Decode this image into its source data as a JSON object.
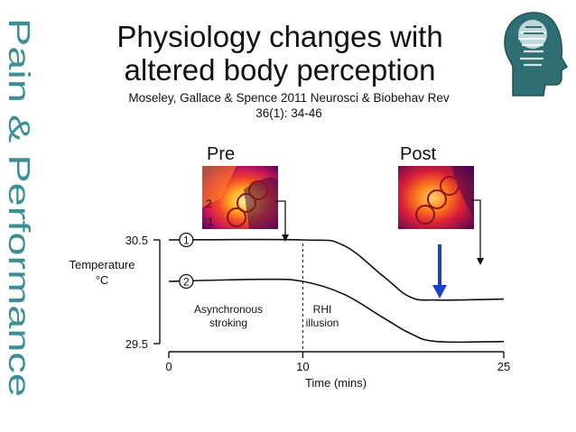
{
  "slide": {
    "side_text": "Pain & Performance",
    "title_line1": "Physiology changes with",
    "title_line2": "altered body perception",
    "citation_line1": "Moseley, Gallace & Spence 2011 Neurosci & Biobehav Rev",
    "citation_line2": "36(1): 34-46"
  },
  "logo": {
    "icon": "head-word-cloud-icon"
  },
  "colors": {
    "side_text": "#3b8f95",
    "logo": "#2f6f74",
    "arrow": "#1e3fc8",
    "curve": "#111111"
  },
  "chart_data": {
    "type": "line",
    "xlabel": "Time (mins)",
    "ylabel_line1": "Temperature",
    "ylabel_line2": "°C",
    "xlim": [
      0,
      25
    ],
    "ylim": [
      29.5,
      30.5
    ],
    "x_ticks": [
      0,
      10,
      25
    ],
    "y_ticks": [
      29.5,
      30.5
    ],
    "series": [
      {
        "name": "1",
        "x": [
          0,
          10,
          13,
          16,
          18,
          20,
          25
        ],
        "y": [
          30.5,
          30.5,
          30.45,
          30.15,
          29.95,
          29.92,
          29.93
        ]
      },
      {
        "name": "2",
        "x": [
          0,
          7,
          10,
          13,
          16,
          18,
          20,
          25
        ],
        "y": [
          30.1,
          30.12,
          30.1,
          29.98,
          29.75,
          29.6,
          29.52,
          29.52
        ]
      }
    ],
    "phase_divider_x": 10,
    "annotations": {
      "phase1_line1": "Asynchronous",
      "phase1_line2": "stroking",
      "phase2_line1": "RHI",
      "phase2_line2": "illusion",
      "pre_label": "Pre",
      "post_label": "Post",
      "pre_roi_1": "1",
      "pre_roi_2": "2"
    }
  }
}
